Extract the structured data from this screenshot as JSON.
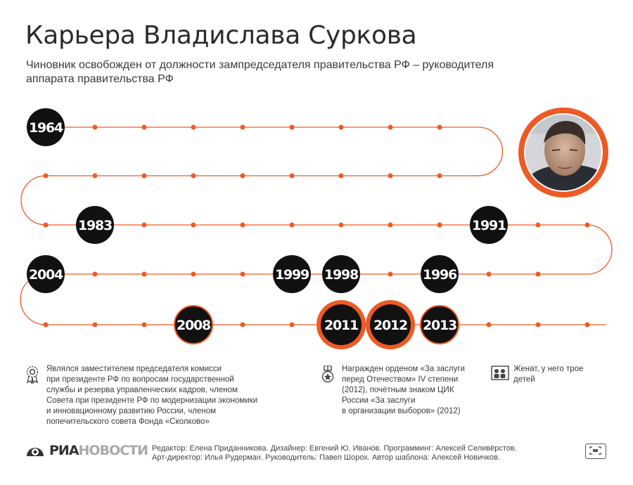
{
  "title": "Карьера Владислава Суркова",
  "subtitle": "Чиновник освобожден от должности зампредседателя правительства РФ – руководителя аппарата правительства РФ",
  "colors": {
    "line": "#ee5a24",
    "badge": "#111111",
    "badge_ring": "#ee5a24",
    "text": "#333333"
  },
  "timeline": {
    "years": [
      {
        "label": "1964",
        "highlight": false
      },
      {
        "label": "1983",
        "highlight": false
      },
      {
        "label": "1991",
        "highlight": false
      },
      {
        "label": "1996",
        "highlight": false
      },
      {
        "label": "1998",
        "highlight": false
      },
      {
        "label": "1999",
        "highlight": false
      },
      {
        "label": "2004",
        "highlight": false
      },
      {
        "label": "2008",
        "highlight": false
      },
      {
        "label": "2011",
        "highlight": true
      },
      {
        "label": "2012",
        "highlight": true
      },
      {
        "label": "2013",
        "highlight": false
      }
    ],
    "portrait_icon": "person-portrait"
  },
  "info": [
    {
      "icon": "gear-award-icon",
      "text": "Являлся заместителем председателя комисси\nпри президенте РФ по вопросам государственной\nслужбы и резерва управленческих кадров, членом\nСовета при президенте РФ по модернизации экономики\nи инновационному развитию России, членом\nпопечительского совета Фонда «Сколково»"
    },
    {
      "icon": "medal-icon",
      "text": "Награжден орденом «За заслуги\nперед Отечеством» IV степени\n(2012), почётным знаком ЦИК\nРоссии «За заслуги\nв организации выборов» (2012)"
    },
    {
      "icon": "family-icon",
      "text": "Женат, у него трое\nдетей"
    }
  ],
  "footer": {
    "logo_main": "РИА",
    "logo_light": "НОВОСТИ",
    "credits": "Редактор: Елена Приданникова. Дизайнер: Евгений Ю. Иванов. Программинг: Алексей Селивёрстов.\nАрт-директор: Илья Рудерман. Руководитель: Павел Шорох. Автор шаблона: Алексей Новичков."
  }
}
